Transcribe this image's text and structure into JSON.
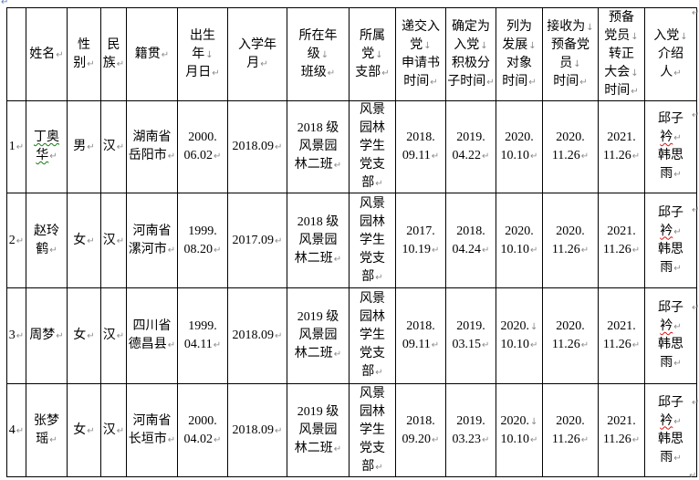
{
  "marks": {
    "p": "↵",
    "b": "↓"
  },
  "colors": {
    "spellcheck_green": "#0f7d0f",
    "spellcheck_red": "#e01010",
    "format_mark_gray": "#8a8a8a"
  },
  "table": {
    "columns": [
      {
        "key": "index",
        "header": []
      },
      {
        "key": "name",
        "header": [
          {
            "t": "姓名",
            "m": "p"
          }
        ]
      },
      {
        "key": "gender",
        "header": [
          {
            "t": "性"
          },
          {
            "t": "别",
            "m": "p"
          }
        ]
      },
      {
        "key": "ethnicity",
        "header": [
          {
            "t": "民"
          },
          {
            "t": "族",
            "m": "p"
          }
        ]
      },
      {
        "key": "native-place",
        "header": [
          {
            "t": "籍贯",
            "m": "p"
          }
        ]
      },
      {
        "key": "birth-date",
        "header": [
          {
            "t": "出生"
          },
          {
            "t": "年",
            "m": "b"
          },
          {
            "t": "月日",
            "m": "p"
          }
        ]
      },
      {
        "key": "enrollment-date",
        "header": [
          {
            "t": "入学年"
          },
          {
            "t": "月",
            "m": "p"
          }
        ]
      },
      {
        "key": "grade-class",
        "header": [
          {
            "t": "所在年"
          },
          {
            "t": "级",
            "m": "b"
          },
          {
            "t": "班级",
            "m": "p"
          }
        ]
      },
      {
        "key": "party-branch",
        "header": [
          {
            "t": "所属"
          },
          {
            "t": "党",
            "m": "b"
          },
          {
            "t": "支部",
            "m": "p"
          }
        ]
      },
      {
        "key": "application-time",
        "header": [
          {
            "t": "递交入"
          },
          {
            "t": "党",
            "m": "b"
          },
          {
            "t": "申请书"
          },
          {
            "t": "时间",
            "m": "p"
          }
        ]
      },
      {
        "key": "activist-time",
        "header": [
          {
            "t": "确定为"
          },
          {
            "t": "入党",
            "m": "b"
          },
          {
            "t": "积极分"
          },
          {
            "t": "子时间",
            "m": "p"
          }
        ]
      },
      {
        "key": "development-time",
        "header": [
          {
            "t": "列为"
          },
          {
            "t": "发展",
            "m": "b"
          },
          {
            "t": "对象"
          },
          {
            "t": "时间",
            "m": "p"
          }
        ]
      },
      {
        "key": "probationary-time",
        "header": [
          {
            "t": "接收为",
            "m": "b"
          },
          {
            "t": "预备党"
          },
          {
            "t": "员",
            "m": "b"
          },
          {
            "t": "时间",
            "m": "p"
          }
        ]
      },
      {
        "key": "full-member-time",
        "header": [
          {
            "t": "预备"
          },
          {
            "t": "党员",
            "m": "b"
          },
          {
            "t": "转正"
          },
          {
            "t": "大会",
            "m": "b"
          },
          {
            "t": "时间",
            "m": "p"
          }
        ]
      },
      {
        "key": "introducers",
        "header": [
          {
            "t": "入党",
            "m": "b"
          },
          {
            "t": "介绍"
          },
          {
            "t": "人",
            "m": "p"
          }
        ]
      }
    ],
    "rows": [
      [
        [
          {
            "t": "1",
            "m": "p"
          }
        ],
        [
          {
            "t": "丁奥",
            "u": "green"
          },
          {
            "t": "华",
            "m": "p",
            "u": "green"
          }
        ],
        [
          {
            "t": "男",
            "m": "p"
          }
        ],
        [
          {
            "t": "汉",
            "m": "p"
          }
        ],
        [
          {
            "t": "湖南省"
          },
          {
            "t": "岳阳市",
            "m": "p"
          }
        ],
        [
          {
            "t": "2000."
          },
          {
            "t": "06.02",
            "m": "p"
          }
        ],
        [
          {
            "t": "2018.09",
            "m": "p"
          }
        ],
        [
          {
            "t": "2018 级"
          },
          {
            "t": "风景园"
          },
          {
            "t": "林二班",
            "m": "p"
          }
        ],
        [
          {
            "t": "风景"
          },
          {
            "t": "园林"
          },
          {
            "t": "学生"
          },
          {
            "t": "党支"
          },
          {
            "t": "部",
            "m": "p"
          }
        ],
        [
          {
            "t": "2018."
          },
          {
            "t": "09.11",
            "m": "p"
          }
        ],
        [
          {
            "t": "2019."
          },
          {
            "t": "04.22",
            "m": "p"
          }
        ],
        [
          {
            "t": "2020."
          },
          {
            "t": "10.10",
            "m": "p"
          }
        ],
        [
          {
            "t": "2020."
          },
          {
            "t": "11.26",
            "m": "p"
          }
        ],
        [
          {
            "t": "2021."
          },
          {
            "t": "11.26",
            "m": "p"
          }
        ],
        [
          {
            "t": "邱子"
          },
          {
            "t": "衿",
            "m": "p",
            "u": "red"
          },
          {
            "t": "韩思"
          },
          {
            "t": "雨",
            "m": "p"
          }
        ]
      ],
      [
        [
          {
            "t": "2",
            "m": "p"
          }
        ],
        [
          {
            "t": "赵玲"
          },
          {
            "t": "鹤",
            "m": "p"
          }
        ],
        [
          {
            "t": "女",
            "m": "p"
          }
        ],
        [
          {
            "t": "汉",
            "m": "p"
          }
        ],
        [
          {
            "t": "河南省"
          },
          {
            "t": "漯河市",
            "m": "p"
          }
        ],
        [
          {
            "t": "1999."
          },
          {
            "t": "08.20",
            "m": "p"
          }
        ],
        [
          {
            "t": "2017.09",
            "m": "p"
          }
        ],
        [
          {
            "t": "2018 级"
          },
          {
            "t": "风景园"
          },
          {
            "t": "林二班",
            "m": "p"
          }
        ],
        [
          {
            "t": "风景"
          },
          {
            "t": "园林"
          },
          {
            "t": "学生"
          },
          {
            "t": "党支"
          },
          {
            "t": "部",
            "m": "p"
          }
        ],
        [
          {
            "t": "2017."
          },
          {
            "t": "10.19",
            "m": "p"
          }
        ],
        [
          {
            "t": "2018."
          },
          {
            "t": "04.24",
            "m": "p"
          }
        ],
        [
          {
            "t": "2020."
          },
          {
            "t": "10.10",
            "m": "p"
          }
        ],
        [
          {
            "t": "2020."
          },
          {
            "t": "11.26",
            "m": "p"
          }
        ],
        [
          {
            "t": "2021."
          },
          {
            "t": "11.26",
            "m": "p"
          }
        ],
        [
          {
            "t": "邱子"
          },
          {
            "t": "衿",
            "m": "p",
            "u": "red"
          },
          {
            "t": "韩思"
          },
          {
            "t": "雨",
            "m": "p"
          }
        ]
      ],
      [
        [
          {
            "t": "3",
            "m": "p"
          }
        ],
        [
          {
            "t": "周梦",
            "m": "p"
          }
        ],
        [
          {
            "t": "女",
            "m": "p"
          }
        ],
        [
          {
            "t": "汉",
            "m": "p"
          }
        ],
        [
          {
            "t": "四川省"
          },
          {
            "t": "德昌县",
            "m": "p"
          }
        ],
        [
          {
            "t": "1999."
          },
          {
            "t": "04.11",
            "m": "p"
          }
        ],
        [
          {
            "t": "2018.09",
            "m": "p"
          }
        ],
        [
          {
            "t": "2019 级"
          },
          {
            "t": "风景园"
          },
          {
            "t": "林二班",
            "m": "p"
          }
        ],
        [
          {
            "t": "风景"
          },
          {
            "t": "园林"
          },
          {
            "t": "学生"
          },
          {
            "t": "党支"
          },
          {
            "t": "部",
            "m": "p"
          }
        ],
        [
          {
            "t": "2018."
          },
          {
            "t": "09.11",
            "m": "p"
          }
        ],
        [
          {
            "t": "2019."
          },
          {
            "t": "03.15",
            "m": "p"
          }
        ],
        [
          {
            "t": "2020.",
            "m": "b"
          },
          {
            "t": "10.10",
            "m": "p"
          }
        ],
        [
          {
            "t": "2020."
          },
          {
            "t": "11.26",
            "m": "p"
          }
        ],
        [
          {
            "t": "2021."
          },
          {
            "t": "11.26",
            "m": "p"
          }
        ],
        [
          {
            "t": "邱子"
          },
          {
            "t": "衿",
            "m": "p",
            "u": "red"
          },
          {
            "t": "韩思"
          },
          {
            "t": "雨",
            "m": "p"
          }
        ]
      ],
      [
        [
          {
            "t": "4",
            "m": "p"
          }
        ],
        [
          {
            "t": "张梦"
          },
          {
            "t": "瑶",
            "m": "p"
          }
        ],
        [
          {
            "t": "女",
            "m": "p"
          }
        ],
        [
          {
            "t": "汉",
            "m": "p"
          }
        ],
        [
          {
            "t": "河南省"
          },
          {
            "t": "长垣市",
            "m": "p"
          }
        ],
        [
          {
            "t": "2000."
          },
          {
            "t": "04.02",
            "m": "p"
          }
        ],
        [
          {
            "t": "2018.09",
            "m": "p"
          }
        ],
        [
          {
            "t": "2019 级"
          },
          {
            "t": "风景园"
          },
          {
            "t": "林二班",
            "m": "p"
          }
        ],
        [
          {
            "t": "风景"
          },
          {
            "t": "园林"
          },
          {
            "t": "学生"
          },
          {
            "t": "党支"
          },
          {
            "t": "部",
            "m": "p"
          }
        ],
        [
          {
            "t": "2018."
          },
          {
            "t": "09.20",
            "m": "p"
          }
        ],
        [
          {
            "t": "2019."
          },
          {
            "t": "03.23",
            "m": "p"
          }
        ],
        [
          {
            "t": "2020.",
            "m": "b"
          },
          {
            "t": "10.10",
            "m": "p"
          }
        ],
        [
          {
            "t": "2020."
          },
          {
            "t": "11.26",
            "m": "p"
          }
        ],
        [
          {
            "t": "2021."
          },
          {
            "t": "11.26",
            "m": "p"
          }
        ],
        [
          {
            "t": "邱子"
          },
          {
            "t": "衿",
            "m": "p",
            "u": "red"
          },
          {
            "t": "韩思"
          },
          {
            "t": "雨",
            "m": "p"
          }
        ]
      ]
    ]
  }
}
